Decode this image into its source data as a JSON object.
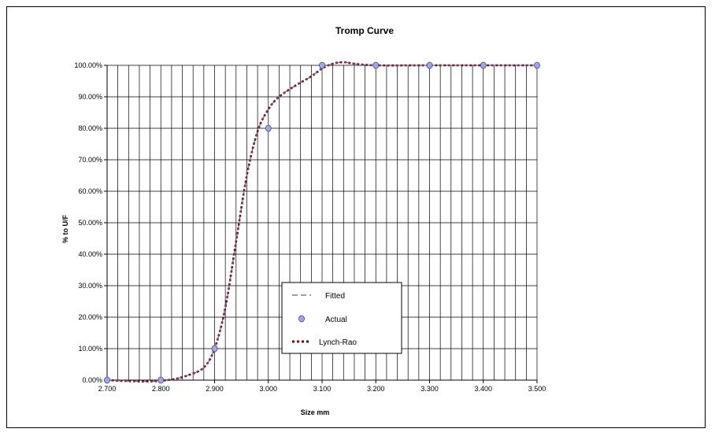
{
  "chart_data": {
    "type": "line",
    "title": "Tromp Curve",
    "xlabel": "Size mm",
    "ylabel": "% to U/F",
    "xlim": [
      2.7,
      3.5
    ],
    "ylim": [
      0,
      1
    ],
    "x_ticks": [
      "2.700",
      "2.800",
      "2.900",
      "3.000",
      "3.100",
      "3.200",
      "3.300",
      "3.400",
      "3.500"
    ],
    "y_ticks": [
      "0.00%",
      "10.00%",
      "20.00%",
      "30.00%",
      "40.00%",
      "50.00%",
      "60.00%",
      "70.00%",
      "80.00%",
      "90.00%",
      "100.00%"
    ],
    "grid": true,
    "legend_position": "bottom-center",
    "series": [
      {
        "name": "Fitted",
        "style": "dashed",
        "color": "#5b5fa8",
        "x": [
          2.7,
          2.74,
          2.78,
          2.82,
          2.85,
          2.88,
          2.9,
          2.92,
          2.94,
          2.96,
          2.98,
          3.0,
          3.02,
          3.05,
          3.08,
          3.1,
          3.12,
          3.14,
          3.16,
          3.2,
          3.3,
          3.4,
          3.5
        ],
        "y": [
          0.0,
          -0.003,
          -0.004,
          0.002,
          0.015,
          0.04,
          0.1,
          0.23,
          0.44,
          0.65,
          0.79,
          0.86,
          0.9,
          0.935,
          0.965,
          0.99,
          1.005,
          1.01,
          1.005,
          1.0,
          1.0,
          1.0,
          1.0
        ]
      },
      {
        "name": "Actual",
        "style": "markers",
        "color": "#9fa7e8",
        "x": [
          2.7,
          2.8,
          2.9,
          3.0,
          3.1,
          3.2,
          3.3,
          3.4,
          3.5
        ],
        "y": [
          0.0,
          0.0,
          0.1,
          0.8,
          1.0,
          1.0,
          1.0,
          1.0,
          1.0
        ]
      },
      {
        "name": "Lynch-Rao",
        "style": "dotted",
        "color": "#8b0000",
        "x": [
          2.7,
          2.74,
          2.78,
          2.82,
          2.85,
          2.88,
          2.9,
          2.92,
          2.94,
          2.96,
          2.98,
          3.0,
          3.02,
          3.05,
          3.08,
          3.1,
          3.12,
          3.14,
          3.16,
          3.2,
          3.3,
          3.4,
          3.5
        ],
        "y": [
          0.0,
          -0.003,
          -0.004,
          0.002,
          0.015,
          0.04,
          0.1,
          0.23,
          0.44,
          0.65,
          0.79,
          0.86,
          0.9,
          0.935,
          0.965,
          0.99,
          1.005,
          1.01,
          1.005,
          1.0,
          1.0,
          1.0,
          1.0
        ]
      }
    ]
  }
}
